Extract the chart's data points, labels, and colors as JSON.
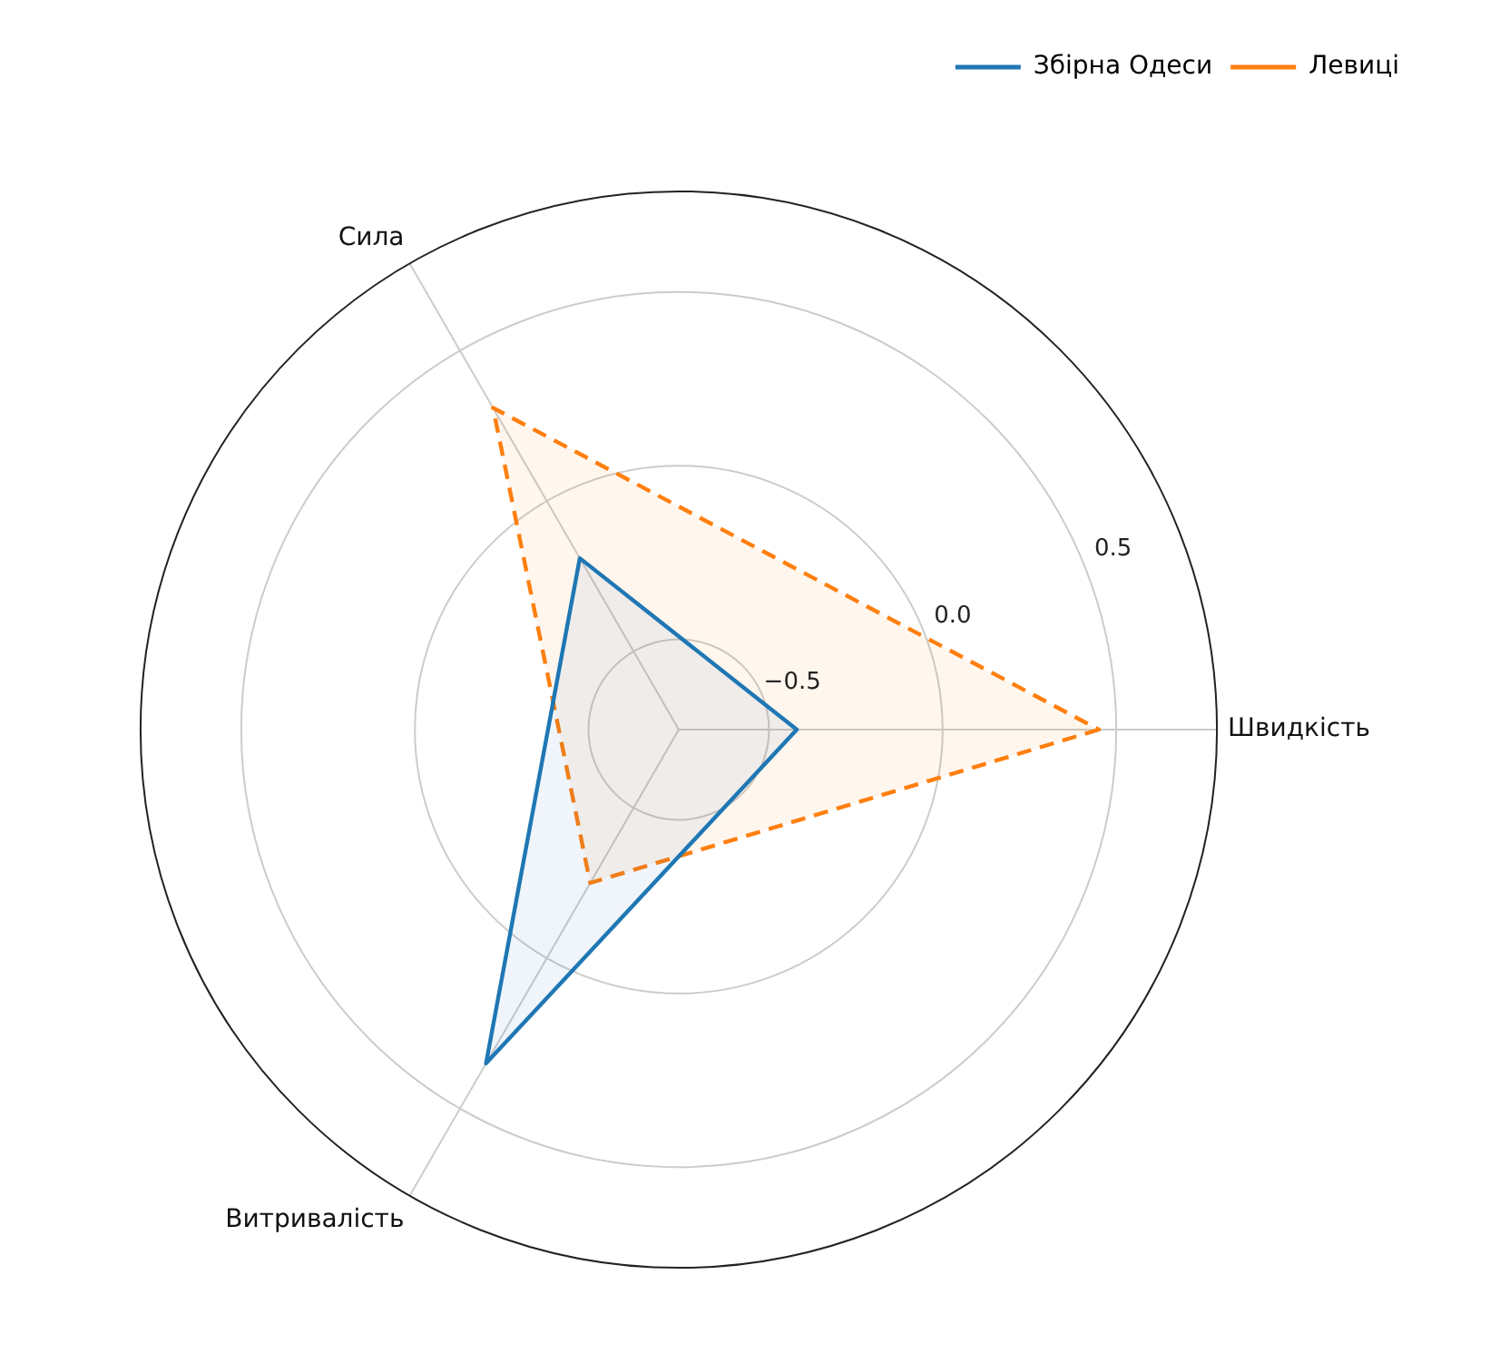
{
  "chart_data": {
    "type": "radar",
    "categories": [
      "Швидкість",
      "Витривалість",
      "Сила"
    ],
    "ylim": [
      -0.76,
      0.79
    ],
    "yticks": [
      {
        "value": -0.5,
        "label": "−0.5"
      },
      {
        "value": 0,
        "label": "0.0"
      },
      {
        "value": 0.5,
        "label": "0.5"
      }
    ],
    "grid": true,
    "legend": "top right",
    "marker": "none",
    "series": [
      {
        "name": "Збірна Одеси",
        "color": "#1f77b4",
        "values": [
          -0.42,
          0.35,
          -0.19
        ],
        "line_style": "solid"
      },
      {
        "name": "Левиці",
        "color": "#ff7f0e",
        "values": [
          0.45,
          -0.25,
          0.31
        ],
        "line_style": "dashed"
      }
    ]
  }
}
